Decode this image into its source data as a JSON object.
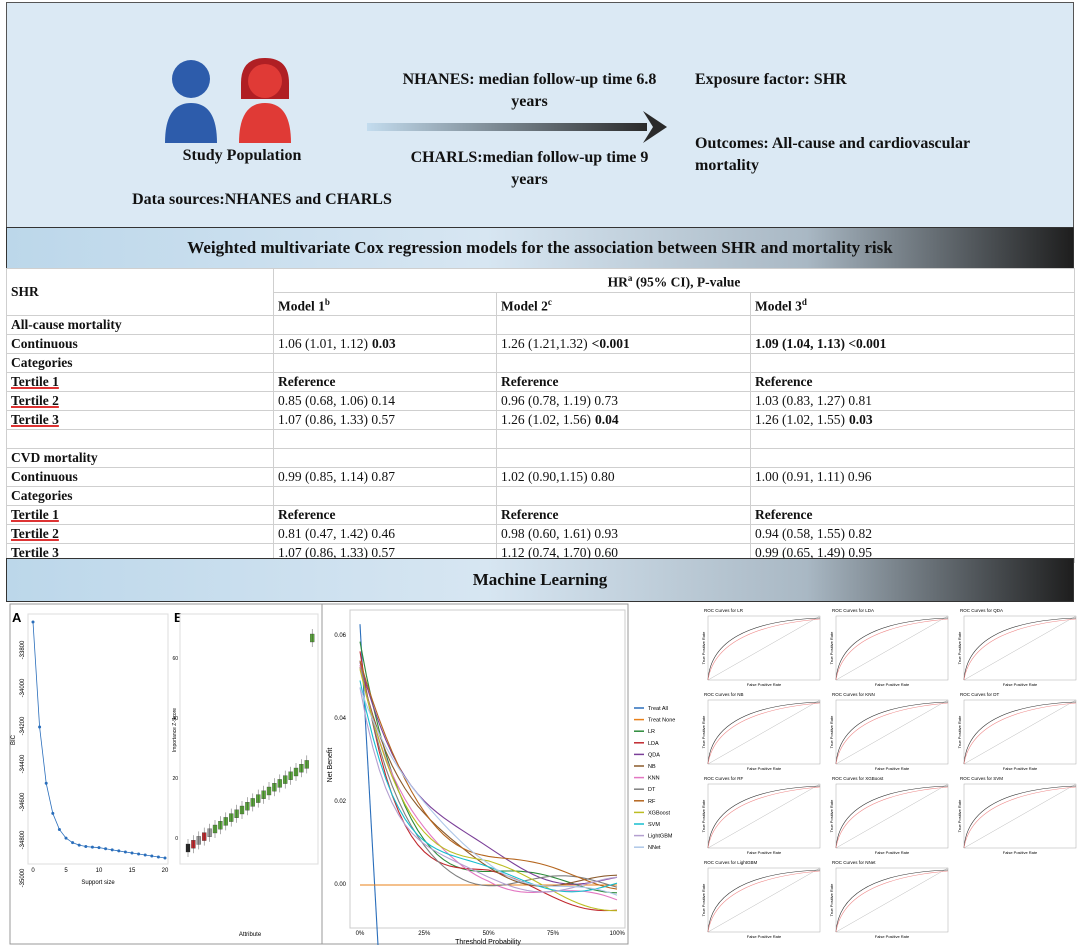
{
  "top": {
    "population_label": "Study Population",
    "data_sources": "Data sources:NHANES and CHARLS",
    "nhanes_followup": "NHANES: median follow-up time 6.8 years",
    "charls_followup": "CHARLS:median follow-up time 9 years",
    "exposure": "Exposure factor: SHR",
    "outcomes": "Outcomes: All-cause and cardiovascular mortality"
  },
  "cox_banner": "Weighted multivariate Cox regression models for the association between SHR and mortality risk",
  "table": {
    "header": {
      "row_label": "SHR",
      "group": {
        "text": "HR",
        "sup": "a",
        "rest": " (95% CI), P-value"
      },
      "models": [
        {
          "name": "Model 1",
          "sup": "b"
        },
        {
          "name": "Model 2",
          "sup": "c"
        },
        {
          "name": "Model 3",
          "sup": "d"
        }
      ]
    },
    "groups": [
      {
        "rows": [
          {
            "label": "All-cause mortality"
          },
          {
            "label": "Continuous",
            "cells": [
              {
                "t": "1.06 (1.01, 1.12)",
                "b": "0.03"
              },
              {
                "t": "1.26 (1.21,1.32)",
                "b": "<0.001"
              },
              {
                "b": "1.09 (1.04, 1.13) <0.001"
              }
            ]
          },
          {
            "label": "Categories"
          },
          {
            "label": "Tertile 1",
            "underlined": true,
            "cells": [
              {
                "b": "Reference"
              },
              {
                "b": "Reference"
              },
              {
                "b": "Reference"
              }
            ]
          },
          {
            "label": "Tertile 2",
            "underlined": true,
            "cells": [
              {
                "t": "0.85 (0.68, 1.06) 0.14"
              },
              {
                "t": "0.96 (0.78, 1.19) 0.73"
              },
              {
                "t": "1.03 (0.83, 1.27) 0.81"
              }
            ]
          },
          {
            "label": "Tertile 3",
            "underlined": true,
            "cells": [
              {
                "t": "1.07 (0.86, 1.33) 0.57"
              },
              {
                "t": "1.26 (1.02, 1.56)",
                "b": "0.04"
              },
              {
                "t": "1.26 (1.02, 1.55)",
                "b": "0.03"
              }
            ]
          }
        ]
      },
      {
        "rows": [
          {
            "label": "CVD mortality"
          },
          {
            "label": "Continuous",
            "cells": [
              {
                "t": "0.99 (0.85, 1.14) 0.87"
              },
              {
                "t": "1.02 (0.90,1.15) 0.80"
              },
              {
                "t": "1.00 (0.91, 1.11) 0.96"
              }
            ]
          },
          {
            "label": "Categories"
          },
          {
            "label": "Tertile 1",
            "underlined": true,
            "cells": [
              {
                "b": "Reference"
              },
              {
                "b": "Reference"
              },
              {
                "b": "Reference"
              }
            ]
          },
          {
            "label": "Tertile 2",
            "underlined": true,
            "cells": [
              {
                "t": "0.81 (0.47, 1.42) 0.46"
              },
              {
                "t": "0.98 (0.60, 1.61) 0.93"
              },
              {
                "t": "0.94 (0.58, 1.55) 0.82"
              }
            ]
          },
          {
            "label": "Tertile 3",
            "underlined": true,
            "cells": [
              {
                "t": "1.07 (0.86, 1.33) 0.57"
              },
              {
                "t": "1.12 (0.74, 1.70) 0.60"
              },
              {
                "t": "0.99 (0.65, 1.49) 0.95"
              }
            ]
          }
        ]
      }
    ]
  },
  "ml_banner": "Machine Learning",
  "figures": {
    "panel_a": {
      "letter": "A",
      "xlabel": "Support size",
      "ylabel": "BIC",
      "xticks": [
        "0",
        "5",
        "10",
        "15",
        "20"
      ],
      "yticks": [
        "-33800",
        "-34000",
        "-34200",
        "-34400",
        "-34600",
        "-34800",
        "-35000"
      ]
    },
    "panel_b": {
      "letter": "B",
      "xlabel": "Attribute",
      "ylabel": "Importance Z-Score",
      "yticks": [
        "60",
        "40",
        "20",
        "0"
      ]
    },
    "decision": {
      "ylabel": "Net Benefit",
      "xlabel": "Threshold Probability",
      "yticks": [
        "0.06",
        "0.04",
        "0.02",
        "0.00"
      ],
      "xticks": [
        "0%",
        "25%",
        "50%",
        "75%",
        "100%"
      ],
      "legend": [
        {
          "name": "Treat All",
          "color": "#2a6ebb"
        },
        {
          "name": "Treat None",
          "color": "#e8801a"
        },
        {
          "name": "LR",
          "color": "#2c8a3a"
        },
        {
          "name": "LDA",
          "color": "#c0282d"
        },
        {
          "name": "QDA",
          "color": "#7b3f98"
        },
        {
          "name": "NB",
          "color": "#8b5a2b"
        },
        {
          "name": "KNN",
          "color": "#e377c2"
        },
        {
          "name": "DT",
          "color": "#7f7f7f"
        },
        {
          "name": "RF",
          "color": "#b5651d"
        },
        {
          "name": "XGBoost",
          "color": "#bcbd22"
        },
        {
          "name": "SVM",
          "color": "#17becf"
        },
        {
          "name": "LightGBM",
          "color": "#b49fd0"
        },
        {
          "name": "NNet",
          "color": "#aec7e8"
        }
      ]
    },
    "roc": {
      "xlabel": "False Positive Rate",
      "ylabel": "True Positive Rate",
      "titles": [
        "ROC Curves for LR",
        "ROC Curves for LDA",
        "ROC Curves for QDA",
        "ROC Curves for NB",
        "ROC Curves for KNN",
        "ROC Curves for DT",
        "ROC Curves for RF",
        "ROC Curves for XGBoost",
        "ROC Curves for SVM",
        "ROC Curves for LightGBM",
        "ROC Curves for NNet"
      ]
    }
  }
}
